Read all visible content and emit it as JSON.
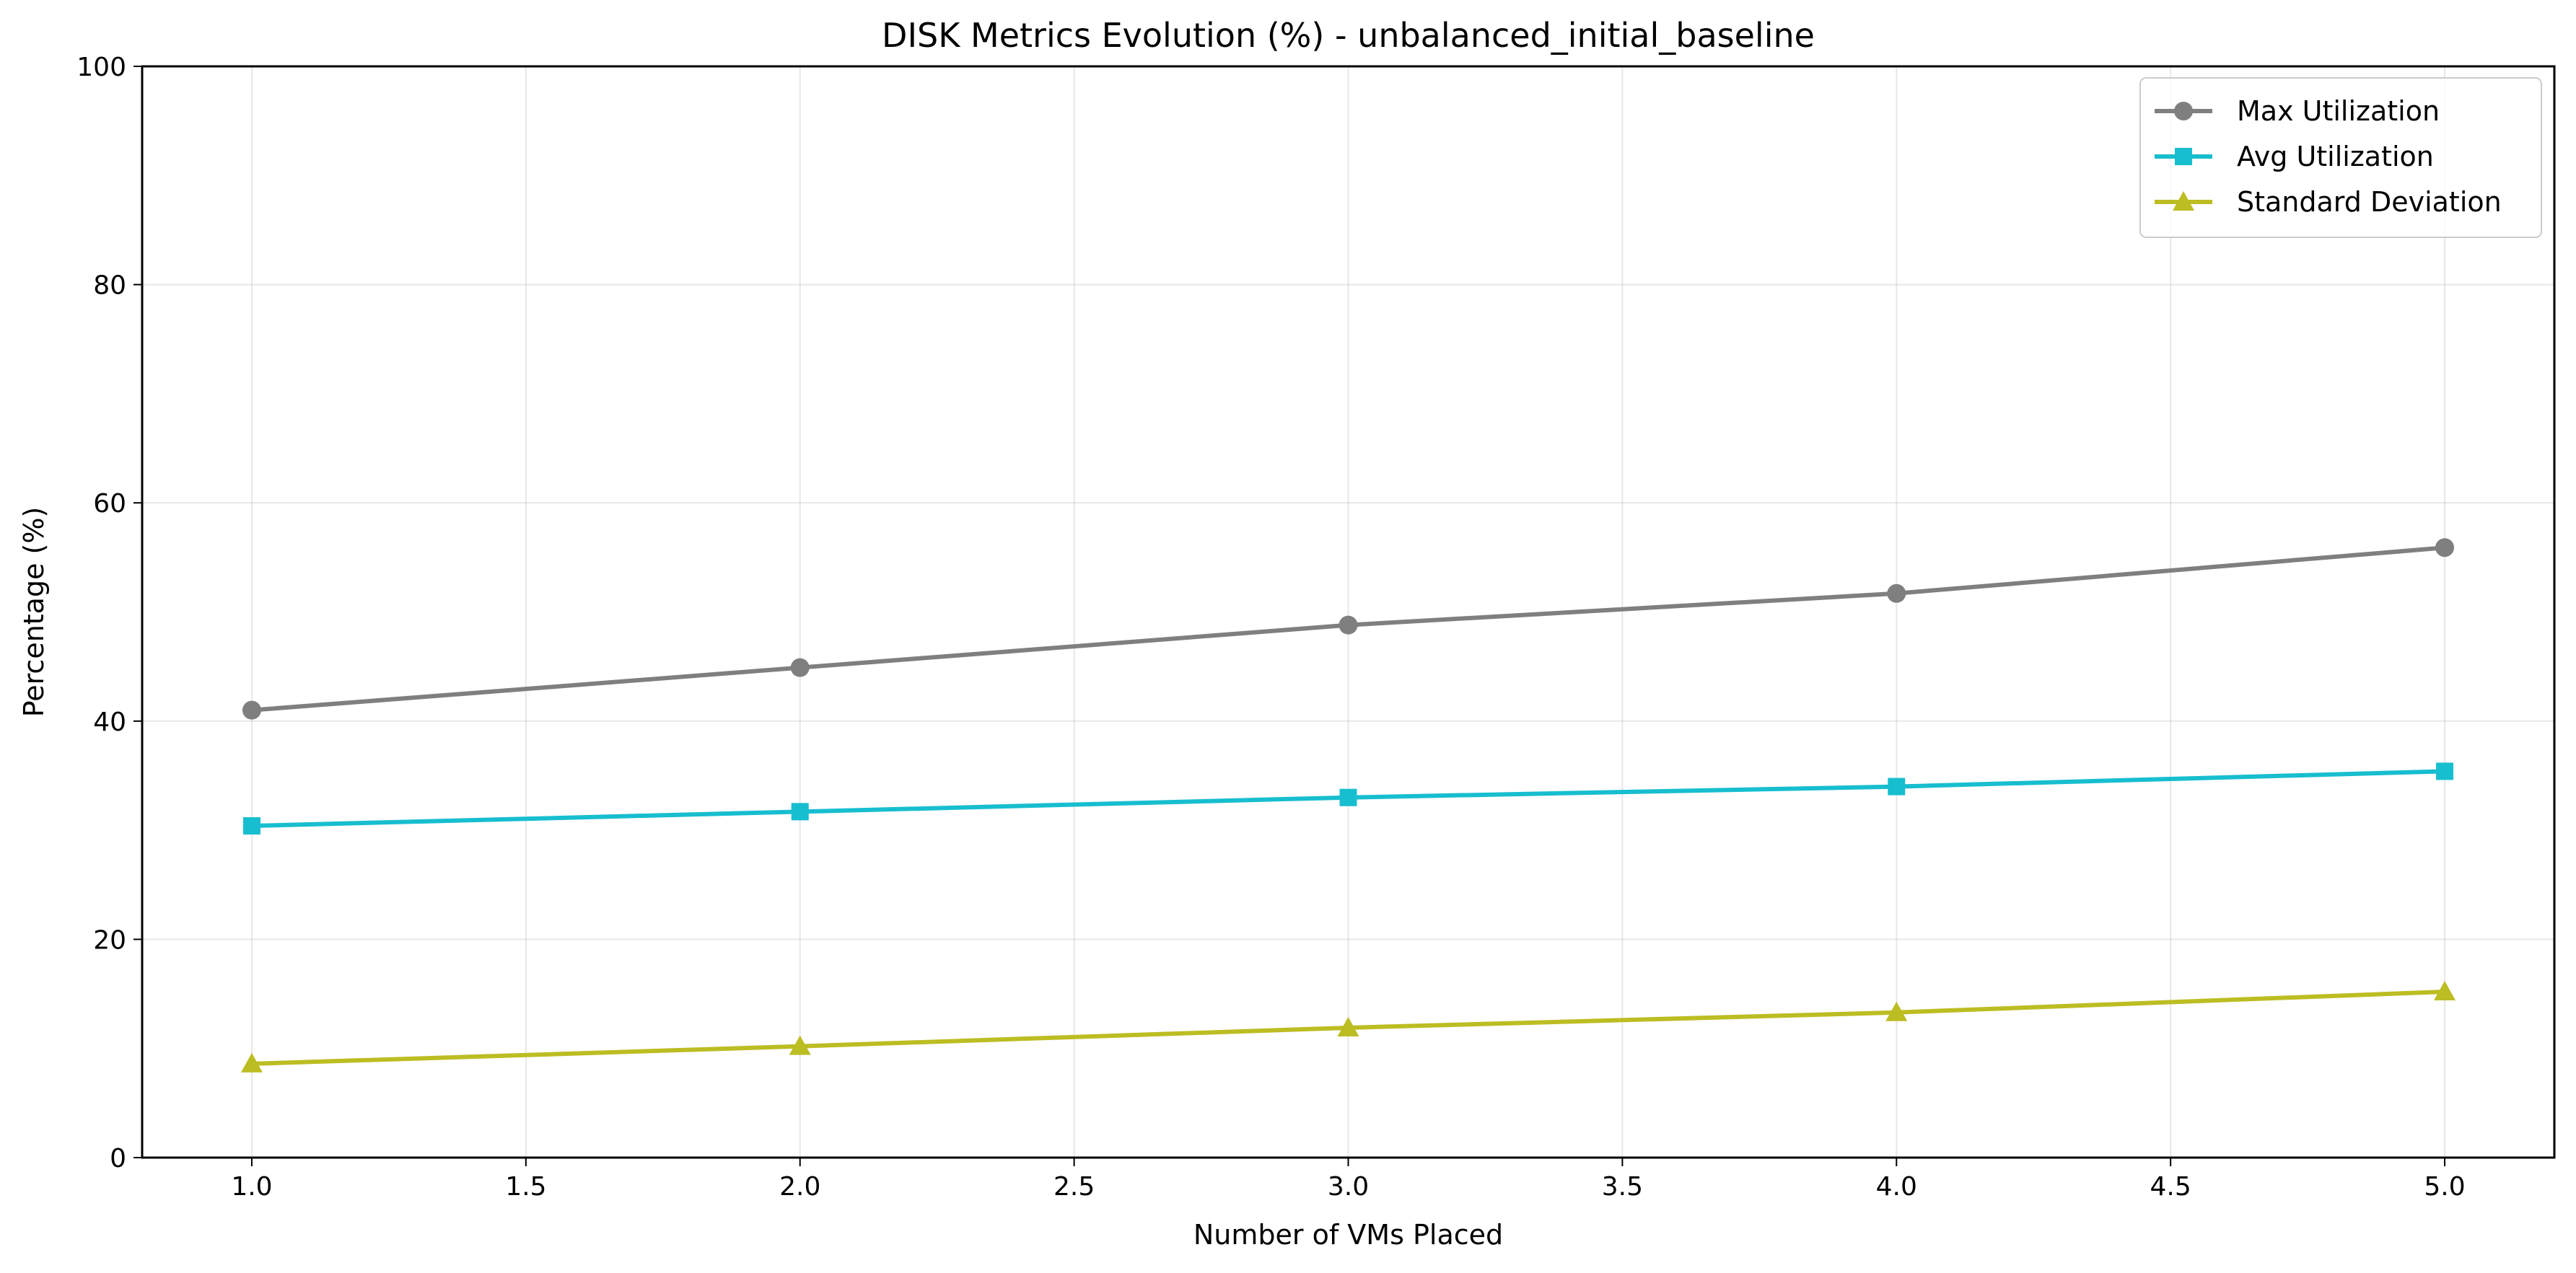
{
  "chart_data": {
    "type": "line",
    "title": "DISK Metrics Evolution (%) - unbalanced_initial_baseline",
    "xlabel": "Number of VMs Placed",
    "ylabel": "Percentage (%)",
    "xlim": [
      0.8,
      5.2
    ],
    "ylim": [
      0,
      100
    ],
    "x_ticks": [
      1.0,
      1.5,
      2.0,
      2.5,
      3.0,
      3.5,
      4.0,
      4.5,
      5.0
    ],
    "x_tick_labels": [
      "1.0",
      "1.5",
      "2.0",
      "2.5",
      "3.0",
      "3.5",
      "4.0",
      "4.5",
      "5.0"
    ],
    "y_ticks": [
      0,
      20,
      40,
      60,
      80,
      100
    ],
    "y_tick_labels": [
      "0",
      "20",
      "40",
      "60",
      "80",
      "100"
    ],
    "grid": true,
    "legend_position": "top-right",
    "x": [
      1,
      2,
      3,
      4,
      5
    ],
    "series": [
      {
        "name": "Max Utilization",
        "values": [
          41.0,
          44.9,
          48.8,
          51.7,
          55.9
        ],
        "color": "#7f7f7f",
        "marker": "circle"
      },
      {
        "name": "Avg Utilization",
        "values": [
          30.4,
          31.7,
          33.0,
          34.0,
          35.4
        ],
        "color": "#17becf",
        "marker": "square"
      },
      {
        "name": "Standard Deviation",
        "values": [
          8.6,
          10.2,
          11.9,
          13.3,
          15.2
        ],
        "color": "#bcbd22",
        "marker": "triangle"
      }
    ]
  }
}
